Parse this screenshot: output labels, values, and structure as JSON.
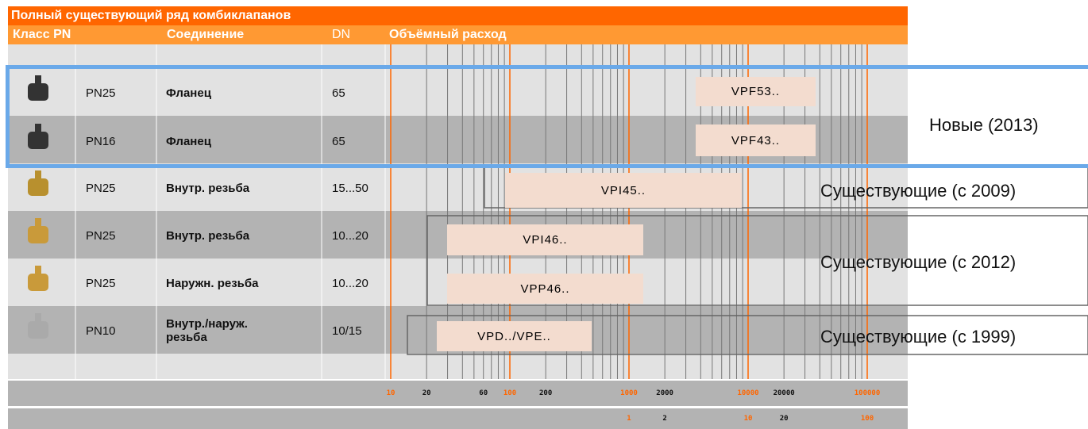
{
  "header": {
    "title": "Полный существующий ряд комбиклапанов",
    "columns": [
      "Класс PN",
      "Соединение",
      "DN",
      "Объёмный расход"
    ]
  },
  "rows": [
    {
      "pn": "PN25",
      "connection": "Фланец",
      "dn": "65",
      "product": "VPF53.."
    },
    {
      "pn": "PN16",
      "connection": "Фланец",
      "dn": "65",
      "product": "VPF43.."
    },
    {
      "pn": "PN25",
      "connection": "Внутр. резьба",
      "dn": "15...50",
      "product": "VPI45.."
    },
    {
      "pn": "PN25",
      "connection": "Внутр. резьба",
      "dn": "10...20",
      "product": "VPI46.."
    },
    {
      "pn": "PN25",
      "connection": "Наружн. резьба",
      "dn": "10...20",
      "product": "VPP46.."
    },
    {
      "pn": "PN10",
      "connection": "Внутр./наруж. резьба",
      "dn": "10/15",
      "product": "VPD../VPE.."
    }
  ],
  "groups": [
    "Новые (2013)",
    "Существующие (с 2009)",
    "Существующие (с 2012)",
    "Существующие (с 1999)"
  ],
  "axis": {
    "lph": [
      10,
      20,
      60,
      100,
      200,
      1000,
      2000,
      10000,
      20000,
      100000
    ],
    "m3h": [
      1,
      2,
      10,
      20,
      100
    ]
  }
}
